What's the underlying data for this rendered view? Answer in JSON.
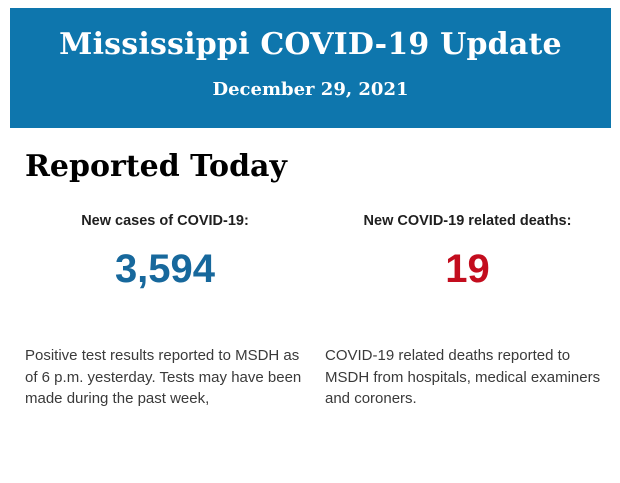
{
  "header": {
    "title": "Mississippi COVID-19 Update",
    "date": "December 29, 2021",
    "background_color": "#0e76ad",
    "text_color": "#ffffff"
  },
  "section": {
    "title": "Reported Today"
  },
  "stats": [
    {
      "id": "new-cases",
      "label": "New cases of COVID-19:",
      "value": "3,594",
      "value_color": "#17689c",
      "description": "Positive test results reported to MSDH as of 6 p.m. yesterday. Tests may have been made during the past week,"
    },
    {
      "id": "new-deaths",
      "label": "New COVID-19 related deaths:",
      "value": "19",
      "value_color": "#c30d1e",
      "description": "COVID-19 related deaths reported to MSDH from hospitals, medical examiners and coroners."
    }
  ]
}
